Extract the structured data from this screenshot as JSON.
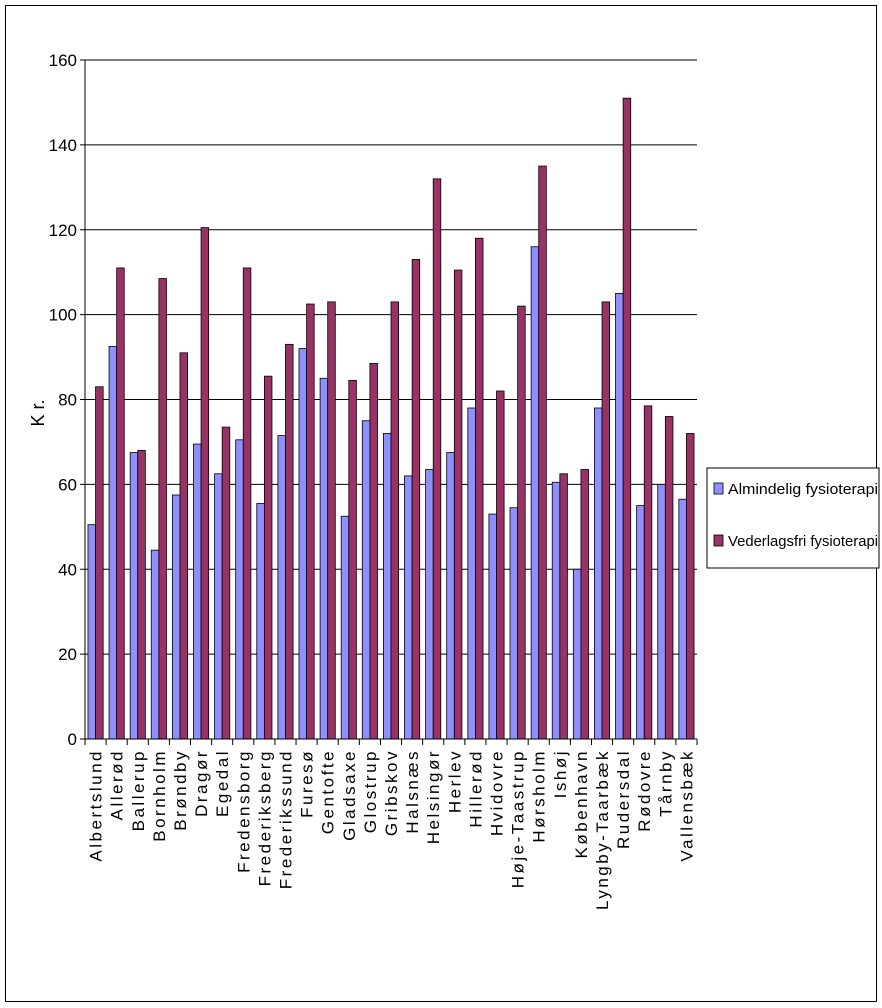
{
  "chart_data": {
    "type": "bar",
    "title": "",
    "xlabel": "",
    "ylabel": "K r.",
    "ylim": [
      0,
      160
    ],
    "yticks": [
      0,
      20,
      40,
      60,
      80,
      100,
      120,
      140,
      160
    ],
    "grid": "horizontal",
    "legend_position": "right",
    "categories": [
      "Albertslund",
      "Allerød",
      "Ballerup",
      "Bornholm",
      "Brøndby",
      "Dragør",
      "Egedal",
      "Fredensborg",
      "Frederiksberg",
      "Frederikssund",
      "Furesø",
      "Gentofte",
      "Gladsaxe",
      "Glostrup",
      "Gribskov",
      "Halsnæs",
      "Helsingør",
      "Herlev",
      "Hillerød",
      "Hvidovre",
      "Høje-Taastrup",
      "Hørsholm",
      "Ishøj",
      "København",
      "Lyngby-Taarbæk",
      "Rudersdal",
      "Rødovre",
      "Tårnby",
      "Vallensbæk"
    ],
    "series": [
      {
        "name": "Almindelig fysioterapi",
        "color": "#8f8fff",
        "values": [
          50.5,
          92.5,
          67.5,
          44.5,
          57.5,
          69.5,
          62.5,
          70.5,
          55.5,
          71.5,
          92,
          85,
          52.5,
          75,
          72,
          62,
          63.5,
          67.5,
          78,
          53,
          54.5,
          116,
          60.5,
          40,
          78,
          105,
          55,
          60,
          56.5
        ]
      },
      {
        "name": "Vederlagsfri fysioterapi",
        "color": "#993366",
        "values": [
          83,
          111,
          68,
          108.5,
          91,
          120.5,
          73.5,
          111,
          85.5,
          93,
          102.5,
          103,
          84.5,
          88.5,
          103,
          113,
          132,
          110.5,
          118,
          82,
          102,
          135,
          62.5,
          63.5,
          103,
          151,
          78.5,
          76,
          72
        ]
      }
    ]
  }
}
